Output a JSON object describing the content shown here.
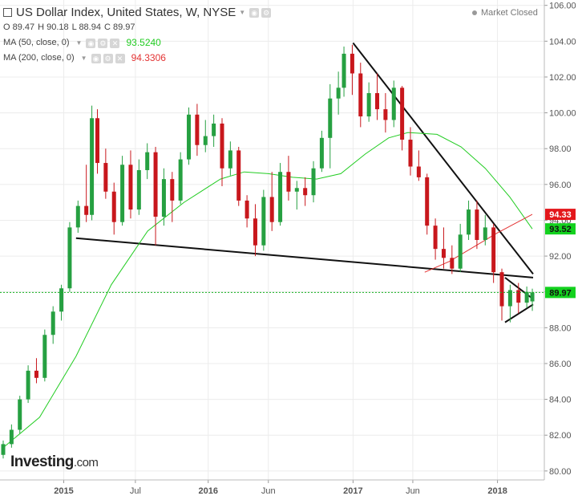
{
  "header": {
    "title": "US Dollar Index, United States, W, NYSE",
    "ohlc": {
      "open": "O 89.47",
      "high": "H 90.18",
      "low": "L 88.94",
      "close": "C 89.97"
    },
    "ma50": {
      "label": "MA (50, close, 0)",
      "value": "93.5240",
      "color": "#22cc22"
    },
    "ma200": {
      "label": "MA (200, close, 0)",
      "value": "94.3306",
      "color": "#e33333"
    },
    "market_status": "Market Closed"
  },
  "brand": {
    "name": "Investing",
    "suffix": ".com"
  },
  "price_badges": [
    {
      "value": "94.33",
      "bg": "#e3171b",
      "fg": "#ffffff"
    },
    {
      "value": "93.52",
      "bg": "#13d11e",
      "fg": "#111111"
    },
    {
      "value": "89.97",
      "bg": "#13d11e",
      "fg": "#111111"
    }
  ],
  "chart_data": {
    "type": "candlestick",
    "symbol": "US Dollar Index",
    "interval": "W",
    "xaxis": {
      "ticks": [
        "2015",
        "Jul",
        "2016",
        "Jun",
        "2017",
        "Jun",
        "2018"
      ],
      "tick_dates": [
        "2015-01-01",
        "2015-07-01",
        "2016-01-01",
        "2016-06-01",
        "2017-01-01",
        "2017-06-01",
        "2018-01-01"
      ],
      "range": [
        "2014-08-01",
        "2018-04-05"
      ]
    },
    "yaxis": {
      "ticks": [
        "106.00",
        "104.00",
        "102.00",
        "100.00",
        "98.00",
        "96.00",
        "94.00",
        "92.00",
        "90.00",
        "88.00",
        "86.00",
        "84.00",
        "82.00",
        "80.00"
      ],
      "range": [
        79.5,
        106.3
      ],
      "position": "right"
    },
    "candles": [
      {
        "d": "2014-08-01",
        "o": 80.9,
        "h": 81.7,
        "l": 80.7,
        "c": 81.5
      },
      {
        "d": "2014-08-22",
        "o": 81.5,
        "h": 82.6,
        "l": 81.3,
        "c": 82.3
      },
      {
        "d": "2014-09-12",
        "o": 82.3,
        "h": 84.2,
        "l": 82.1,
        "c": 84.0
      },
      {
        "d": "2014-10-03",
        "o": 84.0,
        "h": 85.9,
        "l": 83.8,
        "c": 85.6
      },
      {
        "d": "2014-10-24",
        "o": 85.6,
        "h": 86.3,
        "l": 84.9,
        "c": 85.2
      },
      {
        "d": "2014-11-14",
        "o": 85.2,
        "h": 87.9,
        "l": 85.0,
        "c": 87.6
      },
      {
        "d": "2014-12-05",
        "o": 87.6,
        "h": 89.2,
        "l": 87.1,
        "c": 88.9
      },
      {
        "d": "2014-12-26",
        "o": 88.9,
        "h": 90.4,
        "l": 88.4,
        "c": 90.2
      },
      {
        "d": "2015-01-16",
        "o": 90.2,
        "h": 93.9,
        "l": 90.0,
        "c": 93.6
      },
      {
        "d": "2015-02-06",
        "o": 93.6,
        "h": 95.1,
        "l": 93.3,
        "c": 94.8
      },
      {
        "d": "2015-02-27",
        "o": 94.8,
        "h": 97.1,
        "l": 93.9,
        "c": 94.3
      },
      {
        "d": "2015-03-13",
        "o": 94.3,
        "h": 100.4,
        "l": 94.0,
        "c": 99.7
      },
      {
        "d": "2015-03-27",
        "o": 99.7,
        "h": 100.2,
        "l": 96.6,
        "c": 97.2
      },
      {
        "d": "2015-04-17",
        "o": 97.2,
        "h": 98.0,
        "l": 95.2,
        "c": 95.6
      },
      {
        "d": "2015-05-08",
        "o": 95.6,
        "h": 96.1,
        "l": 93.2,
        "c": 93.9
      },
      {
        "d": "2015-05-29",
        "o": 93.9,
        "h": 97.6,
        "l": 93.7,
        "c": 97.1
      },
      {
        "d": "2015-06-19",
        "o": 97.1,
        "h": 97.9,
        "l": 94.1,
        "c": 94.6
      },
      {
        "d": "2015-07-10",
        "o": 94.6,
        "h": 97.4,
        "l": 94.3,
        "c": 96.8
      },
      {
        "d": "2015-07-31",
        "o": 96.8,
        "h": 98.3,
        "l": 96.3,
        "c": 97.8
      },
      {
        "d": "2015-08-21",
        "o": 97.8,
        "h": 98.1,
        "l": 92.6,
        "c": 94.2
      },
      {
        "d": "2015-09-11",
        "o": 94.2,
        "h": 96.9,
        "l": 93.7,
        "c": 96.3
      },
      {
        "d": "2015-10-02",
        "o": 96.3,
        "h": 96.7,
        "l": 93.9,
        "c": 95.1
      },
      {
        "d": "2015-10-23",
        "o": 95.1,
        "h": 97.8,
        "l": 94.9,
        "c": 97.4
      },
      {
        "d": "2015-11-13",
        "o": 97.4,
        "h": 100.3,
        "l": 97.1,
        "c": 99.9
      },
      {
        "d": "2015-12-04",
        "o": 99.9,
        "h": 100.5,
        "l": 97.6,
        "c": 98.2
      },
      {
        "d": "2015-12-25",
        "o": 98.2,
        "h": 99.6,
        "l": 97.8,
        "c": 98.7
      },
      {
        "d": "2016-01-15",
        "o": 98.7,
        "h": 99.9,
        "l": 98.1,
        "c": 99.4
      },
      {
        "d": "2016-02-05",
        "o": 99.4,
        "h": 99.7,
        "l": 95.9,
        "c": 96.9
      },
      {
        "d": "2016-02-26",
        "o": 96.9,
        "h": 98.4,
        "l": 96.5,
        "c": 97.9
      },
      {
        "d": "2016-03-18",
        "o": 97.9,
        "h": 98.1,
        "l": 94.8,
        "c": 95.1
      },
      {
        "d": "2016-04-08",
        "o": 95.1,
        "h": 95.4,
        "l": 93.6,
        "c": 94.1
      },
      {
        "d": "2016-04-29",
        "o": 94.1,
        "h": 94.9,
        "l": 92.0,
        "c": 92.6
      },
      {
        "d": "2016-05-20",
        "o": 92.6,
        "h": 95.7,
        "l": 92.3,
        "c": 95.3
      },
      {
        "d": "2016-06-10",
        "o": 95.3,
        "h": 96.7,
        "l": 93.4,
        "c": 93.9
      },
      {
        "d": "2016-07-01",
        "o": 93.9,
        "h": 97.2,
        "l": 93.7,
        "c": 96.7
      },
      {
        "d": "2016-07-22",
        "o": 96.7,
        "h": 97.6,
        "l": 95.1,
        "c": 95.6
      },
      {
        "d": "2016-08-12",
        "o": 95.6,
        "h": 96.2,
        "l": 94.6,
        "c": 95.8
      },
      {
        "d": "2016-09-02",
        "o": 95.8,
        "h": 96.4,
        "l": 94.8,
        "c": 95.4
      },
      {
        "d": "2016-09-23",
        "o": 95.4,
        "h": 97.3,
        "l": 95.0,
        "c": 96.9
      },
      {
        "d": "2016-10-14",
        "o": 96.9,
        "h": 99.0,
        "l": 96.7,
        "c": 98.6
      },
      {
        "d": "2016-11-04",
        "o": 98.6,
        "h": 101.6,
        "l": 96.9,
        "c": 100.8
      },
      {
        "d": "2016-11-25",
        "o": 100.8,
        "h": 102.3,
        "l": 99.9,
        "c": 101.4
      },
      {
        "d": "2016-12-09",
        "o": 101.4,
        "h": 103.7,
        "l": 100.9,
        "c": 103.3
      },
      {
        "d": "2016-12-30",
        "o": 103.3,
        "h": 103.8,
        "l": 101.0,
        "c": 102.2
      },
      {
        "d": "2017-01-20",
        "o": 102.2,
        "h": 102.8,
        "l": 99.2,
        "c": 99.8
      },
      {
        "d": "2017-02-10",
        "o": 99.8,
        "h": 101.7,
        "l": 99.5,
        "c": 101.1
      },
      {
        "d": "2017-03-03",
        "o": 101.1,
        "h": 102.2,
        "l": 99.6,
        "c": 100.2
      },
      {
        "d": "2017-03-24",
        "o": 100.2,
        "h": 101.1,
        "l": 98.9,
        "c": 99.6
      },
      {
        "d": "2017-04-14",
        "o": 99.6,
        "h": 101.8,
        "l": 99.2,
        "c": 101.4
      },
      {
        "d": "2017-05-05",
        "o": 101.4,
        "h": 101.5,
        "l": 97.9,
        "c": 98.5
      },
      {
        "d": "2017-05-26",
        "o": 98.5,
        "h": 99.2,
        "l": 96.5,
        "c": 97.0
      },
      {
        "d": "2017-06-16",
        "o": 97.0,
        "h": 97.9,
        "l": 96.2,
        "c": 96.4
      },
      {
        "d": "2017-07-07",
        "o": 96.4,
        "h": 96.6,
        "l": 93.2,
        "c": 93.7
      },
      {
        "d": "2017-07-28",
        "o": 93.7,
        "h": 94.1,
        "l": 91.8,
        "c": 92.4
      },
      {
        "d": "2017-08-18",
        "o": 92.4,
        "h": 93.6,
        "l": 91.3,
        "c": 91.9
      },
      {
        "d": "2017-09-08",
        "o": 91.9,
        "h": 92.6,
        "l": 91.0,
        "c": 91.3
      },
      {
        "d": "2017-09-29",
        "o": 91.3,
        "h": 93.8,
        "l": 91.1,
        "c": 93.2
      },
      {
        "d": "2017-10-20",
        "o": 93.2,
        "h": 95.1,
        "l": 92.9,
        "c": 94.6
      },
      {
        "d": "2017-11-10",
        "o": 94.6,
        "h": 95.1,
        "l": 92.4,
        "c": 92.9
      },
      {
        "d": "2017-12-01",
        "o": 92.9,
        "h": 94.3,
        "l": 92.6,
        "c": 93.6
      },
      {
        "d": "2017-12-22",
        "o": 93.6,
        "h": 93.8,
        "l": 90.5,
        "c": 91.1
      },
      {
        "d": "2018-01-12",
        "o": 91.1,
        "h": 91.3,
        "l": 88.4,
        "c": 89.2
      },
      {
        "d": "2018-02-02",
        "o": 89.2,
        "h": 90.4,
        "l": 88.3,
        "c": 90.1
      },
      {
        "d": "2018-02-23",
        "o": 90.1,
        "h": 90.5,
        "l": 88.8,
        "c": 89.4
      },
      {
        "d": "2018-03-16",
        "o": 89.4,
        "h": 90.3,
        "l": 89.1,
        "c": 90.0
      },
      {
        "d": "2018-03-30",
        "o": 89.47,
        "h": 90.18,
        "l": 88.94,
        "c": 89.97
      }
    ],
    "ma50": [
      [
        "2014-08-01",
        81.3
      ],
      [
        "2014-11-01",
        83.0
      ],
      [
        "2015-02-01",
        86.4
      ],
      [
        "2015-05-01",
        90.4
      ],
      [
        "2015-08-01",
        93.4
      ],
      [
        "2015-11-01",
        95.0
      ],
      [
        "2016-02-01",
        96.3
      ],
      [
        "2016-04-01",
        96.7
      ],
      [
        "2016-06-01",
        96.6
      ],
      [
        "2016-08-01",
        96.4
      ],
      [
        "2016-10-01",
        96.3
      ],
      [
        "2016-12-01",
        96.6
      ],
      [
        "2017-02-01",
        97.7
      ],
      [
        "2017-04-01",
        98.6
      ],
      [
        "2017-05-20",
        98.9
      ],
      [
        "2017-08-01",
        98.8
      ],
      [
        "2017-10-01",
        98.1
      ],
      [
        "2017-12-01",
        96.9
      ],
      [
        "2018-02-01",
        95.3
      ],
      [
        "2018-03-30",
        93.52
      ]
    ],
    "ma200": [
      [
        "2017-07-01",
        91.1
      ],
      [
        "2017-09-01",
        91.7
      ],
      [
        "2017-11-01",
        92.5
      ],
      [
        "2018-01-01",
        93.3
      ],
      [
        "2018-03-30",
        94.33
      ]
    ],
    "trendlines": [
      {
        "name": "support",
        "from": [
          "2015-02-01",
          93.0
        ],
        "to": [
          "2018-04-01",
          90.8
        ]
      },
      {
        "name": "resistance",
        "from": [
          "2017-01-01",
          103.9
        ],
        "to": [
          "2018-04-01",
          91.0
        ]
      },
      {
        "name": "pennant-upper",
        "from": [
          "2018-01-20",
          90.8
        ],
        "to": [
          "2018-04-01",
          89.6
        ]
      },
      {
        "name": "pennant-lower",
        "from": [
          "2018-01-20",
          88.3
        ],
        "to": [
          "2018-04-01",
          89.3
        ]
      }
    ],
    "last_price_line": 89.97,
    "grid": true,
    "legend": "top-left"
  }
}
